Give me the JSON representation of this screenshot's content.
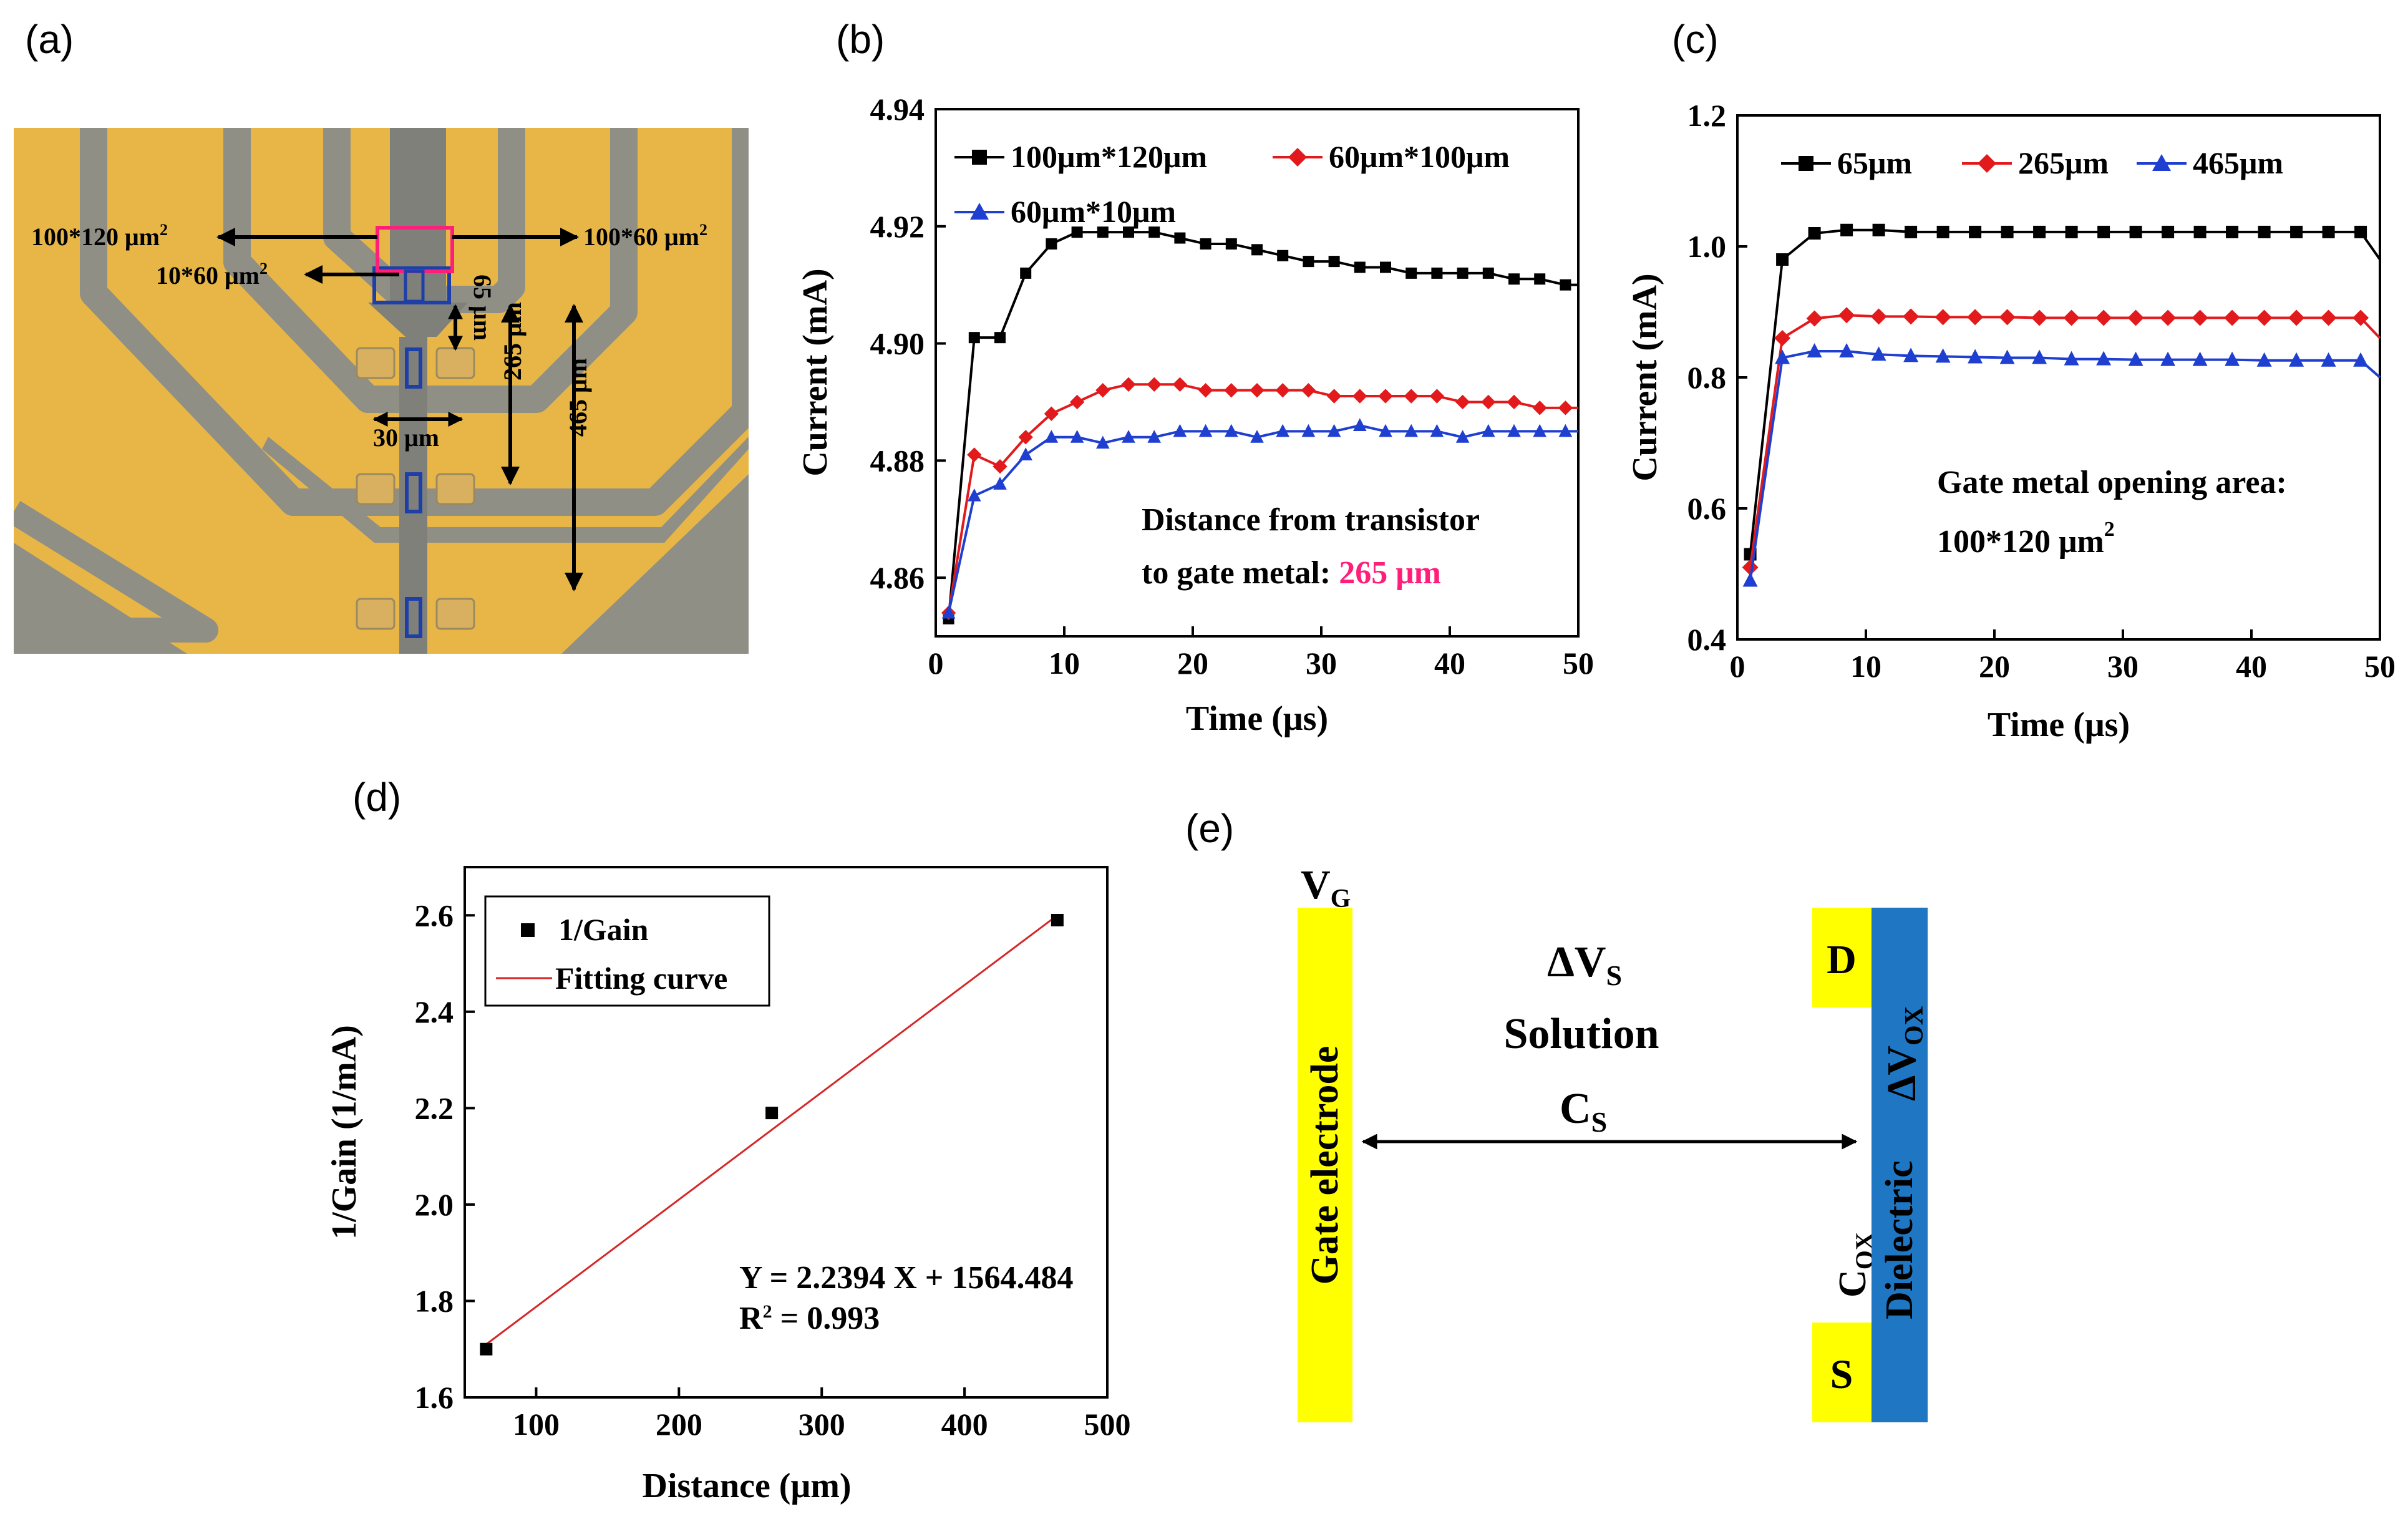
{
  "panel_labels": {
    "a": "(a)",
    "b": "(b)",
    "c": "(c)",
    "d": "(d)",
    "e": "(e)"
  },
  "micrograph": {
    "labels": {
      "area_large_base": "100*120 μm",
      "area_large_sup": "2",
      "area_mid_base": "100*60 μm",
      "area_mid_sup": "2",
      "area_small_base": "10*60 μm",
      "area_small_sup": "2",
      "dist_65": "65 μm",
      "dist_30": "30 μm",
      "dist_265": "265 μm",
      "dist_465": "465 μm"
    },
    "colors": {
      "gold": "#e8b646",
      "substrate": "#8f8f86",
      "trace": "#7f807a",
      "pad": "#d8b060",
      "pink": "#ff1f7a",
      "blue": "#1f3fa8"
    }
  },
  "chart_data": [
    {
      "panel": "b",
      "type": "line",
      "xlabel": "Time (μs)",
      "ylabel": "Current (mA)",
      "xlim": [
        0,
        50
      ],
      "ylim": [
        4.85,
        4.94
      ],
      "xticks": [
        0,
        10,
        20,
        30,
        40,
        50
      ],
      "yticks": [
        4.86,
        4.88,
        4.9,
        4.92,
        4.94
      ],
      "legend_position": "top",
      "series": [
        {
          "name": "100μm*120μm",
          "color": "#000000",
          "marker": "square",
          "x": [
            1,
            3,
            5,
            7,
            9,
            11,
            13,
            15,
            17,
            19,
            21,
            23,
            25,
            27,
            29,
            31,
            33,
            35,
            37,
            39,
            41,
            43,
            45,
            47,
            49,
            50
          ],
          "y": [
            4.853,
            4.901,
            4.901,
            4.912,
            4.917,
            4.919,
            4.919,
            4.919,
            4.919,
            4.918,
            4.917,
            4.917,
            4.916,
            4.915,
            4.914,
            4.914,
            4.913,
            4.913,
            4.912,
            4.912,
            4.912,
            4.912,
            4.911,
            4.911,
            4.91,
            4.91
          ]
        },
        {
          "name": "60μm*100μm",
          "color": "#e31a1c",
          "marker": "diamond",
          "x": [
            1,
            3,
            5,
            7,
            9,
            11,
            13,
            15,
            17,
            19,
            21,
            23,
            25,
            27,
            29,
            31,
            33,
            35,
            37,
            39,
            41,
            43,
            45,
            47,
            49,
            50
          ],
          "y": [
            4.854,
            4.881,
            4.879,
            4.884,
            4.888,
            4.89,
            4.892,
            4.893,
            4.893,
            4.893,
            4.892,
            4.892,
            4.892,
            4.892,
            4.892,
            4.891,
            4.891,
            4.891,
            4.891,
            4.891,
            4.89,
            4.89,
            4.89,
            4.889,
            4.889,
            4.889
          ]
        },
        {
          "name": "60μm*10μm",
          "color": "#1f3fd0",
          "marker": "triangle",
          "x": [
            1,
            3,
            5,
            7,
            9,
            11,
            13,
            15,
            17,
            19,
            21,
            23,
            25,
            27,
            29,
            31,
            33,
            35,
            37,
            39,
            41,
            43,
            45,
            47,
            49,
            50
          ],
          "y": [
            4.854,
            4.874,
            4.876,
            4.881,
            4.884,
            4.884,
            4.883,
            4.884,
            4.884,
            4.885,
            4.885,
            4.885,
            4.884,
            4.885,
            4.885,
            4.885,
            4.886,
            4.885,
            4.885,
            4.885,
            4.884,
            4.885,
            4.885,
            4.885,
            4.885,
            4.885
          ]
        }
      ],
      "annotation": {
        "line1": "Distance from transistor",
        "line2": "to gate metal: ",
        "value": "265 μm",
        "value_color": "#ff1f7a"
      }
    },
    {
      "panel": "c",
      "type": "line",
      "xlabel": "Time (μs)",
      "ylabel": "Current (mA)",
      "xlim": [
        0,
        50
      ],
      "ylim": [
        0.4,
        1.2
      ],
      "xticks": [
        0,
        10,
        20,
        30,
        40,
        50
      ],
      "yticks": [
        0.4,
        0.6,
        0.8,
        1.0,
        1.2
      ],
      "legend_position": "top",
      "series": [
        {
          "name": "65μm",
          "color": "#000000",
          "marker": "square",
          "x": [
            1,
            3.5,
            6,
            8.5,
            11,
            13.5,
            16,
            18.5,
            21,
            23.5,
            26,
            28.5,
            31,
            33.5,
            36,
            38.5,
            41,
            43.5,
            46,
            48.5,
            50
          ],
          "y": [
            0.53,
            0.98,
            1.02,
            1.025,
            1.025,
            1.022,
            1.022,
            1.022,
            1.022,
            1.022,
            1.022,
            1.022,
            1.022,
            1.022,
            1.022,
            1.022,
            1.022,
            1.022,
            1.022,
            1.022,
            0.98
          ]
        },
        {
          "name": "265μm",
          "color": "#e31a1c",
          "marker": "diamond",
          "x": [
            1,
            3.5,
            6,
            8.5,
            11,
            13.5,
            16,
            18.5,
            21,
            23.5,
            26,
            28.5,
            31,
            33.5,
            36,
            38.5,
            41,
            43.5,
            46,
            48.5,
            50
          ],
          "y": [
            0.51,
            0.86,
            0.89,
            0.895,
            0.893,
            0.893,
            0.892,
            0.892,
            0.892,
            0.891,
            0.891,
            0.891,
            0.891,
            0.891,
            0.891,
            0.891,
            0.891,
            0.891,
            0.891,
            0.891,
            0.86
          ]
        },
        {
          "name": "465μm",
          "color": "#1f3fd0",
          "marker": "triangle",
          "x": [
            1,
            3.5,
            6,
            8.5,
            11,
            13.5,
            16,
            18.5,
            21,
            23.5,
            26,
            28.5,
            31,
            33.5,
            36,
            38.5,
            41,
            43.5,
            46,
            48.5,
            50
          ],
          "y": [
            0.49,
            0.83,
            0.84,
            0.84,
            0.835,
            0.833,
            0.832,
            0.831,
            0.83,
            0.83,
            0.828,
            0.828,
            0.827,
            0.827,
            0.827,
            0.827,
            0.826,
            0.826,
            0.826,
            0.826,
            0.8
          ]
        }
      ],
      "annotation": {
        "line1": "Gate metal opening area:",
        "value_base": "100*120 μm",
        "value_sup": "2",
        "value_color": "#ff1f7a"
      }
    },
    {
      "panel": "d",
      "type": "scatter",
      "xlabel": "Distance (μm)",
      "ylabel": "1/Gain (1/mA)",
      "xlim": [
        50,
        500
      ],
      "ylim": [
        1.6,
        2.7
      ],
      "xticks": [
        100,
        200,
        300,
        400,
        500
      ],
      "yticks": [
        1.6,
        1.8,
        2.0,
        2.2,
        2.4,
        2.6
      ],
      "legend_position": "top-left",
      "series": [
        {
          "name": "1/Gain",
          "color": "#000000",
          "marker": "square",
          "x": [
            65,
            265,
            465
          ],
          "y": [
            1.7,
            2.19,
            2.59
          ]
        }
      ],
      "fit": {
        "name": "Fitting curve",
        "color": "#d62728",
        "x": [
          65,
          465
        ],
        "y": [
          1.71,
          2.6
        ]
      },
      "equation": "Y = 2.2394 X + 1564.484",
      "r2_base": "R",
      "r2_sup": "2",
      "r2_value": " = 0.993"
    }
  ],
  "diagram_e": {
    "vg_base": "V",
    "vg_sub": "G",
    "gate_label": "Gate electrode",
    "dvs_base": "ΔV",
    "dvs_sub": "S",
    "solution": "Solution",
    "cs_base": "C",
    "cs_sub": "S",
    "cox_base": "C",
    "cox_sub": "OX",
    "dielectric": "Dielectric",
    "dvox_base": "ΔV",
    "dvox_sub": "OX",
    "drain": "D",
    "source": "S",
    "colors": {
      "yellow": "#ffff00",
      "blue": "#1f77c4"
    }
  }
}
